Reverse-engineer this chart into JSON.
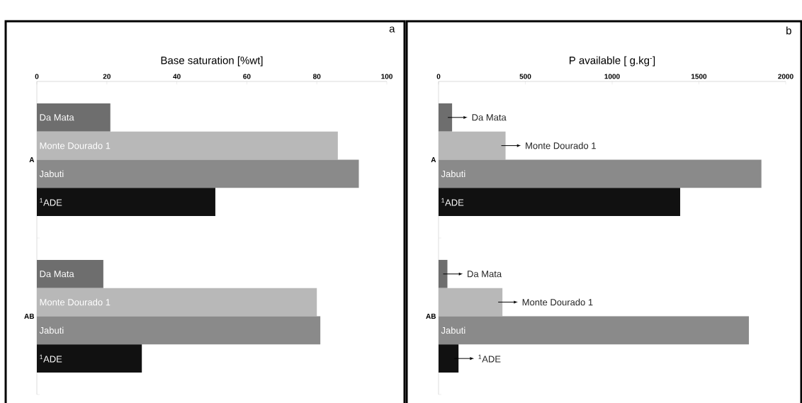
{
  "chart_data": [
    {
      "type": "bar",
      "orientation": "horizontal",
      "xlabel": "Base saturation [%wt]",
      "annotations": [
        "a"
      ],
      "categories": [
        "A",
        "AB"
      ],
      "xlim": [
        0,
        100
      ],
      "xticks": [
        0,
        20,
        40,
        60,
        80,
        100
      ],
      "series": [
        {
          "name": "Da Mata",
          "color": "#6e6e6e",
          "values": [
            21,
            19
          ]
        },
        {
          "name": "Monte Dourado 1",
          "color": "#b8b8b8",
          "values": [
            86,
            80
          ]
        },
        {
          "name": "Jabuti",
          "color": "#8a8a8a",
          "values": [
            92,
            81
          ]
        },
        {
          "name": "$^{1}$ADE",
          "color": "#111111",
          "values": [
            51,
            30
          ]
        }
      ]
    },
    {
      "type": "bar",
      "orientation": "horizontal",
      "xlabel": "P available [ g.kg$^{-}$]",
      "annotations": [
        "b"
      ],
      "categories": [
        "A",
        "AB"
      ],
      "xlim": [
        0,
        2000
      ],
      "xticks": [
        0,
        500,
        1000,
        1500,
        2000
      ],
      "series": [
        {
          "name": "Da Mata",
          "color": "#6e6e6e",
          "values": [
            78,
            51
          ]
        },
        {
          "name": "Monte Dourado 1",
          "color": "#b8b8b8",
          "values": [
            386,
            368
          ]
        },
        {
          "name": "Jabuti",
          "color": "#8a8a8a",
          "values": [
            1860,
            1788
          ]
        },
        {
          "name": "$^{1}$ADE",
          "color": "#111111",
          "values": [
            1392,
            115
          ]
        }
      ]
    }
  ]
}
